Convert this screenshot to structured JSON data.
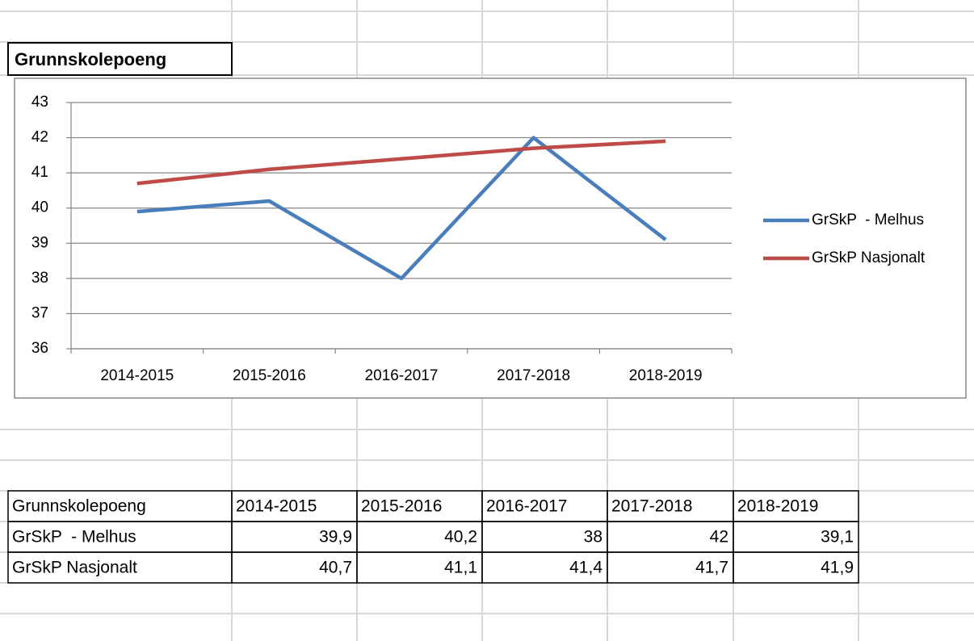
{
  "title_cell": "Grunnskolepoeng",
  "chart_data": {
    "type": "line",
    "categories": [
      "2014-2015",
      "2015-2016",
      "2016-2017",
      "2017-2018",
      "2018-2019"
    ],
    "series": [
      {
        "name": "GrSkP  - Melhus",
        "color": "#4a7ebb",
        "values": [
          39.9,
          40.2,
          38,
          42,
          39.1
        ]
      },
      {
        "name": "GrSkP Nasjonalt",
        "color": "#be4b48",
        "values": [
          40.7,
          41.1,
          41.4,
          41.7,
          41.9
        ]
      }
    ],
    "ylim": [
      36,
      43
    ],
    "yticks": [
      36,
      37,
      38,
      39,
      40,
      41,
      42,
      43
    ],
    "grid": true,
    "legend": "right"
  },
  "table": {
    "header": [
      "Grunnskolepoeng",
      "2014-2015",
      "2015-2016",
      "2016-2017",
      "2017-2018",
      "2018-2019"
    ],
    "rows": [
      [
        "GrSkP  - Melhus",
        "39,9",
        "40,2",
        "38",
        "42",
        "39,1"
      ],
      [
        "GrSkP Nasjonalt",
        "40,7",
        "41,1",
        "41,4",
        "41,7",
        "41,9"
      ]
    ]
  }
}
